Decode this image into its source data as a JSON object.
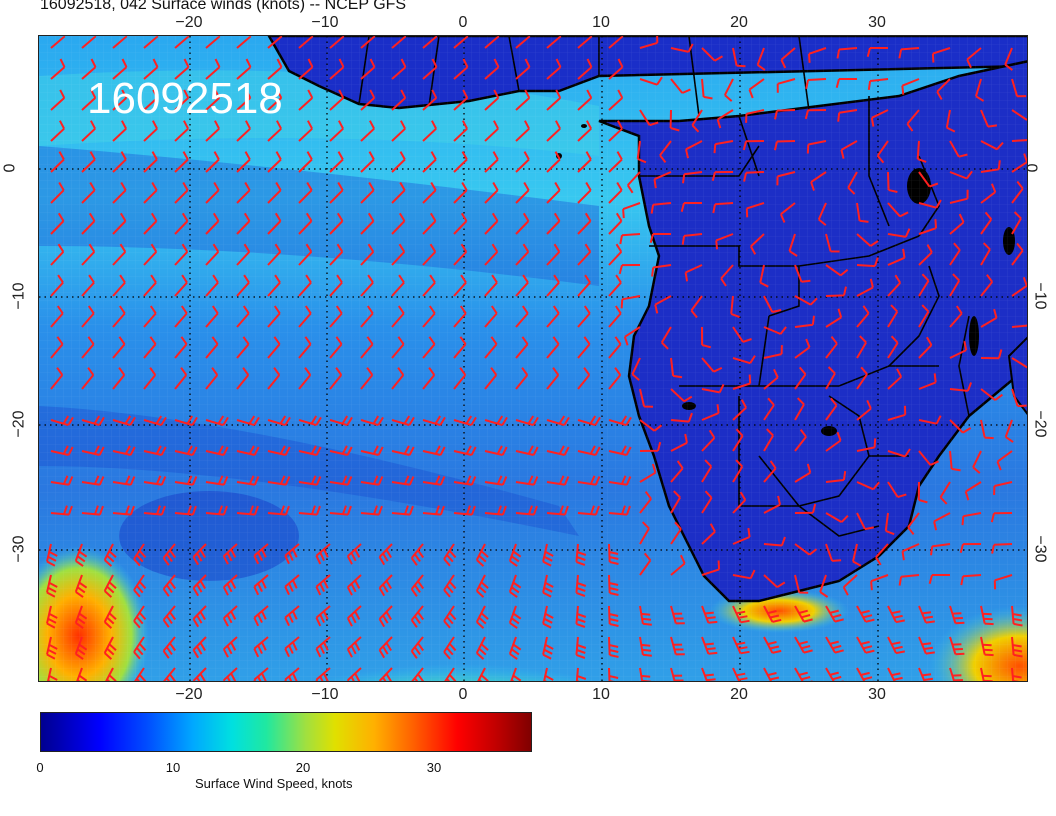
{
  "title": "16092518, 042 Surface winds (knots) -- NCEP GFS",
  "stamp": "16092518",
  "lon_ticks_top": [
    "−20",
    "−10",
    "0",
    "10",
    "20",
    "30"
  ],
  "lon_ticks_bottom": [
    "−20",
    "−10",
    "0",
    "10",
    "20",
    "30"
  ],
  "lat_ticks_left": [
    "0",
    "−10",
    "−20",
    "−30"
  ],
  "lat_ticks_right": [
    "0",
    "−10",
    "−20",
    "−30"
  ],
  "colorbar": {
    "label": "Surface Wind Speed, knots",
    "ticks": [
      "0",
      "10",
      "20",
      "30"
    ],
    "range": [
      0,
      37
    ]
  },
  "colors": {
    "wind_barb": "#ff2020",
    "coastline": "#000000",
    "ocean_mid": "#30b8ee",
    "land": "#1030c8",
    "high_wind": "#ff4000"
  }
}
